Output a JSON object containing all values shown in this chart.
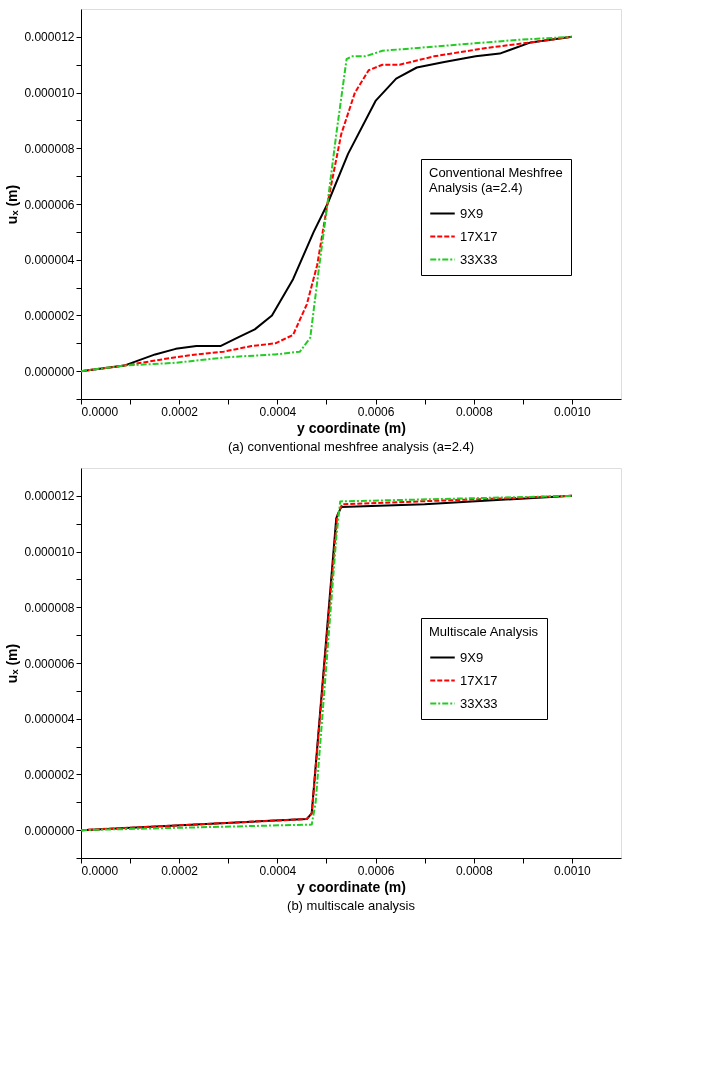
{
  "chart_data": [
    {
      "type": "line",
      "xlabel": "y coordinate (m)",
      "ylabel": "uₓ (m)",
      "legend_title": "Conventional Meshfree Analysis (a=2.4)",
      "legend": "right",
      "grid": false,
      "annotations": [
        "(a) conventional meshfree analysis (a=2.4)"
      ],
      "xlim": [
        0,
        0.0011
      ],
      "ylim": [
        -1e-06,
        1.3e-05
      ],
      "xticks": [
        {
          "value": 0,
          "label": "0.0000"
        },
        {
          "value": 0.0001,
          "label": null
        },
        {
          "value": 0.0002,
          "label": "0.0002"
        },
        {
          "value": 0.0003,
          "label": null
        },
        {
          "value": 0.0004,
          "label": "0.0004"
        },
        {
          "value": 0.0005,
          "label": null
        },
        {
          "value": 0.0006,
          "label": "0.0006"
        },
        {
          "value": 0.0007,
          "label": null
        },
        {
          "value": 0.0008,
          "label": "0.0008"
        },
        {
          "value": 0.0009,
          "label": null
        },
        {
          "value": 0.001,
          "label": "0.0010"
        }
      ],
      "yticks": [
        {
          "value": -1e-06,
          "label": null
        },
        {
          "value": 0,
          "label": "0.000000"
        },
        {
          "value": 1e-06,
          "label": null
        },
        {
          "value": 2e-06,
          "label": "0.000002"
        },
        {
          "value": 3e-06,
          "label": null
        },
        {
          "value": 4e-06,
          "label": "0.000004"
        },
        {
          "value": 5e-06,
          "label": null
        },
        {
          "value": 6e-06,
          "label": "0.000006"
        },
        {
          "value": 7e-06,
          "label": null
        },
        {
          "value": 8e-06,
          "label": "0.000008"
        },
        {
          "value": 9e-06,
          "label": null
        },
        {
          "value": 1e-05,
          "label": "0.000010"
        },
        {
          "value": 1.1e-05,
          "label": null
        },
        {
          "value": 1.2e-05,
          "label": "0.000012"
        }
      ],
      "series": [
        {
          "name": "9X9",
          "color": "#000000",
          "line_style": "solid",
          "x": [
            0,
            8.8e-05,
            0.000151,
            0.000193,
            0.000235,
            0.000284,
            0.000319,
            0.000354,
            0.000389,
            0.000432,
            0.000474,
            0.000502,
            0.000544,
            0.0006,
            0.000642,
            0.000684,
            0.00074,
            0.000804,
            0.000853,
            0.000916,
            0.001
          ],
          "values": [
            0,
            2e-07,
            6e-07,
            8e-07,
            9e-07,
            9e-07,
            1.2e-06,
            1.5e-06,
            2e-06,
            3.3e-06,
            5e-06,
            6e-06,
            7.8e-06,
            9.7e-06,
            1.05e-05,
            1.09e-05,
            1.11e-05,
            1.13e-05,
            1.14e-05,
            1.18e-05,
            1.2e-05
          ]
        },
        {
          "name": "17X17",
          "color": "#ff0000",
          "line_style": "dashed",
          "x": [
            0,
            8.8e-05,
            0.000193,
            0.000235,
            0.000291,
            0.000347,
            0.000396,
            0.000432,
            0.00046,
            0.000481,
            0.000502,
            0.00053,
            0.000558,
            0.000586,
            0.000614,
            0.000649,
            0.000719,
            0.000825,
            0.000916,
            0.001
          ],
          "values": [
            0,
            2e-07,
            5e-07,
            6e-07,
            7e-07,
            9e-07,
            1e-06,
            1.3e-06,
            2.4e-06,
            3.8e-06,
            6e-06,
            8.5e-06,
            1e-05,
            1.08e-05,
            1.1e-05,
            1.1e-05,
            1.13e-05,
            1.16e-05,
            1.18e-05,
            1.2e-05
          ]
        },
        {
          "name": "33X33",
          "color": "#22cc22",
          "line_style": "dashdot",
          "x": [
            0,
            8.8e-05,
            0.000193,
            0.000298,
            0.000396,
            0.000446,
            0.000467,
            0.000484,
            0.000502,
            0.00052,
            0.000541,
            0.000551,
            0.000579,
            0.000614,
            0.000754,
            0.000895,
            0.001
          ],
          "values": [
            0,
            2e-07,
            3e-07,
            5e-07,
            6e-07,
            7e-07,
            1.2e-06,
            3.6e-06,
            6e-06,
            8.5e-06,
            1.12e-05,
            1.13e-05,
            1.13e-05,
            1.15e-05,
            1.17e-05,
            1.19e-05,
            1.2e-05
          ]
        }
      ]
    },
    {
      "type": "line",
      "xlabel": "y coordinate (m)",
      "ylabel": "uₓ (m)",
      "legend_title": "Multiscale Analysis",
      "legend": "right",
      "grid": false,
      "annotations": [
        "(b) multiscale analysis"
      ],
      "xlim": [
        0,
        0.0011
      ],
      "ylim": [
        -1e-06,
        1.3e-05
      ],
      "xticks": [
        {
          "value": 0,
          "label": "0.0000"
        },
        {
          "value": 0.0001,
          "label": null
        },
        {
          "value": 0.0002,
          "label": "0.0002"
        },
        {
          "value": 0.0003,
          "label": null
        },
        {
          "value": 0.0004,
          "label": "0.0004"
        },
        {
          "value": 0.0005,
          "label": null
        },
        {
          "value": 0.0006,
          "label": "0.0006"
        },
        {
          "value": 0.0007,
          "label": null
        },
        {
          "value": 0.0008,
          "label": "0.0008"
        },
        {
          "value": 0.0009,
          "label": null
        },
        {
          "value": 0.001,
          "label": "0.0010"
        }
      ],
      "yticks": [
        {
          "value": -1e-06,
          "label": null
        },
        {
          "value": 0,
          "label": "0.000000"
        },
        {
          "value": 1e-06,
          "label": null
        },
        {
          "value": 2e-06,
          "label": "0.000002"
        },
        {
          "value": 3e-06,
          "label": null
        },
        {
          "value": 4e-06,
          "label": "0.000004"
        },
        {
          "value": 5e-06,
          "label": null
        },
        {
          "value": 6e-06,
          "label": "0.000006"
        },
        {
          "value": 7e-06,
          "label": null
        },
        {
          "value": 8e-06,
          "label": "0.000008"
        },
        {
          "value": 9e-06,
          "label": null
        },
        {
          "value": 1e-05,
          "label": "0.000010"
        },
        {
          "value": 1.1e-05,
          "label": null
        },
        {
          "value": 1.2e-05,
          "label": "0.000012"
        }
      ],
      "series": [
        {
          "name": "9X9",
          "color": "#000000",
          "line_style": "solid",
          "x": [
            0,
            0.00046,
            0.00047,
            0.00052,
            0.00053,
            0.0007,
            0.001
          ],
          "values": [
            0,
            4e-07,
            6e-07,
            1.12e-05,
            1.16e-05,
            1.17e-05,
            1.2e-05
          ]
        },
        {
          "name": "17X17",
          "color": "#ff0000",
          "line_style": "dashed",
          "x": [
            0,
            0.00046,
            0.00047,
            0.000522,
            0.000532,
            0.001
          ],
          "values": [
            0,
            4e-07,
            6e-07,
            1.13e-05,
            1.17e-05,
            1.2e-05
          ]
        },
        {
          "name": "33X33",
          "color": "#22cc22",
          "line_style": "dashdot",
          "x": [
            0,
            0.00047,
            0.000478,
            0.00052,
            0.000528,
            0.001
          ],
          "values": [
            0,
            2e-07,
            1e-06,
            1.05e-05,
            1.18e-05,
            1.2e-05
          ]
        }
      ]
    }
  ]
}
